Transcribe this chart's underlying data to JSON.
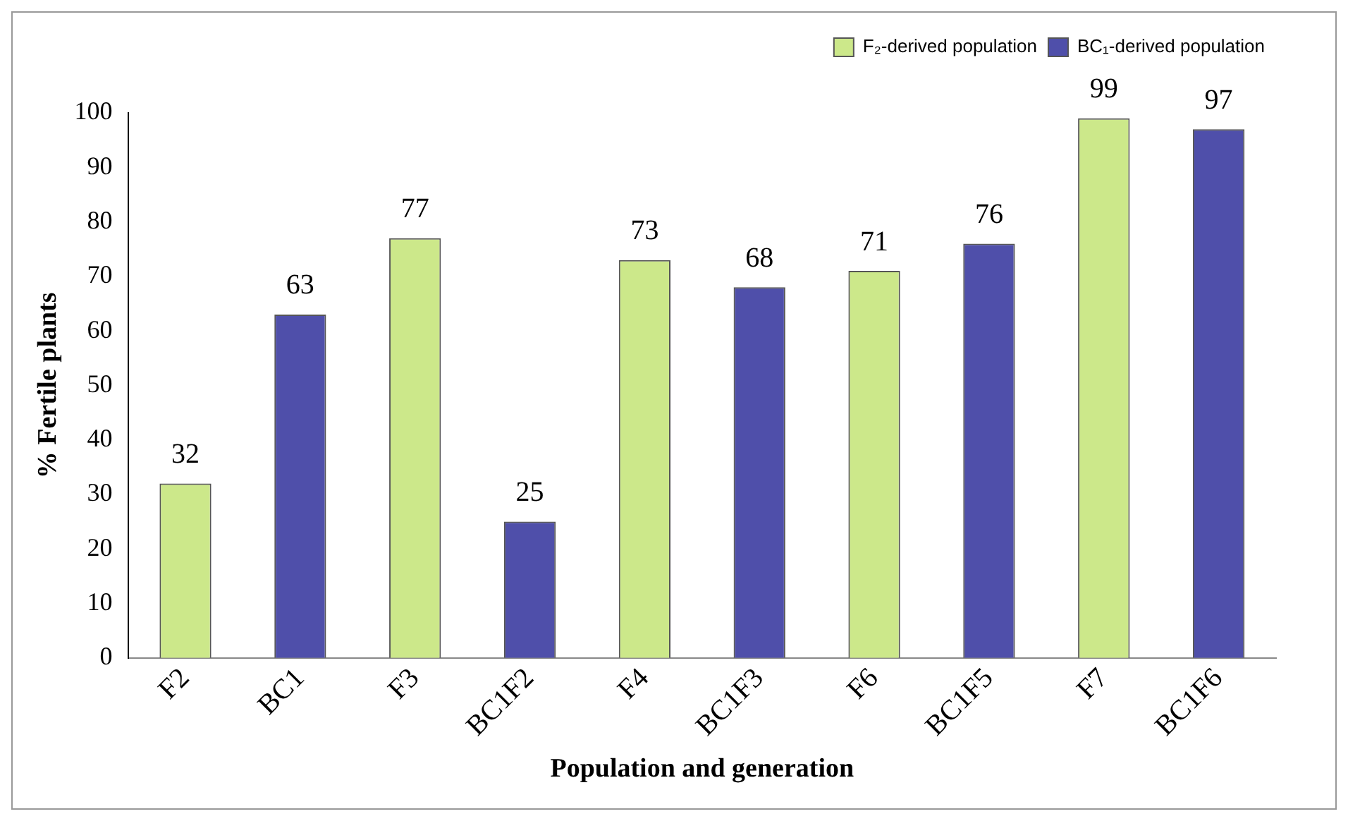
{
  "chart_data": {
    "type": "bar",
    "xlabel": "Population and generation",
    "ylabel": "% Fertile plants",
    "categories": [
      "F2",
      "BC1",
      "F3",
      "BC1F2",
      "F4",
      "BC1F3",
      "F6",
      "BC1F5",
      "F7",
      "BC1F6"
    ],
    "series": [
      {
        "name": "F₂-derived population",
        "color": "#cce88a",
        "values": [
          32,
          null,
          77,
          null,
          73,
          null,
          71,
          null,
          99,
          null
        ]
      },
      {
        "name": "BC₁-derived population",
        "color": "#4f4faa",
        "values": [
          null,
          63,
          null,
          25,
          null,
          68,
          null,
          76,
          null,
          97
        ]
      }
    ],
    "ylim": [
      0,
      100
    ],
    "yticks": [
      0,
      10,
      20,
      30,
      40,
      50,
      60,
      70,
      80,
      90,
      100
    ],
    "data_labels": true,
    "legend": "top right",
    "grid": false
  }
}
